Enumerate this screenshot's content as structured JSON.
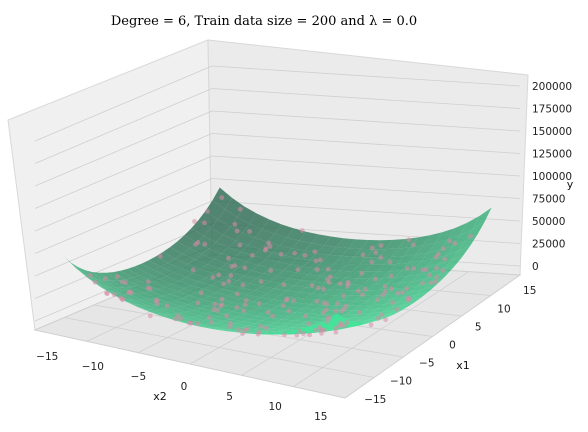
{
  "chart_data": {
    "type": "surface3d",
    "title": "Degree = 6, Train data size = 200 and λ = 0.0",
    "xlabel": "x2",
    "ylabel": "x1",
    "zlabel": "y",
    "x_ticks": [
      "−15",
      "−10",
      "−5",
      "0",
      "5",
      "10",
      "15"
    ],
    "y_ticks": [
      "−15",
      "−10",
      "−5",
      "0",
      "5",
      "10",
      "15"
    ],
    "z_ticks": [
      "0",
      "25000",
      "50000",
      "75000",
      "100000",
      "125000",
      "150000",
      "175000",
      "200000"
    ],
    "xlim": [
      -17,
      17
    ],
    "ylim": [
      -17,
      17
    ],
    "zlim": [
      -10000,
      210000
    ],
    "surface_formula": "y ≈ x1^2 + x2^2 scaled, with degree-6 edge lift",
    "colors": {
      "surface_light": "#3ee89a",
      "surface_dark": "#2f6e55",
      "points": "#d98aa6",
      "pane": "#ececec",
      "grid": "#cfcfcf"
    },
    "train_points": 200
  }
}
